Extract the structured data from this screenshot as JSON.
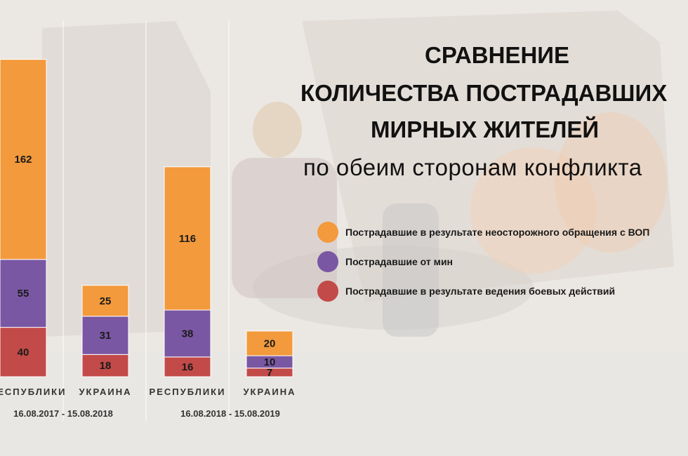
{
  "title_lines": [
    "СРАВНЕНИЕ",
    "КОЛИЧЕСТВА ПОСТРАДАВШИХ",
    "МИРНЫХ ЖИТЕЛЕЙ",
    "по обеим сторонам конфликта"
  ],
  "colors": {
    "accidents": "#f39a3c",
    "mines": "#7a57a3",
    "combat": "#c24a48"
  },
  "chart_data": {
    "type": "bar",
    "stacked": true,
    "categories": [
      "РЕСПУБЛИКИ",
      "УКРАИНА",
      "РЕСПУБЛИКИ",
      "УКРАИНА"
    ],
    "periods": [
      {
        "label": "16.08.2017 - 15.08.2018",
        "categories": [
          0,
          1
        ]
      },
      {
        "label": "16.08.2018 - 15.08.2019",
        "categories": [
          2,
          3
        ]
      }
    ],
    "series": [
      {
        "name": "Пострадавшие в результате ведения боевых действий",
        "key": "combat",
        "values": [
          40,
          18,
          16,
          7
        ]
      },
      {
        "name": "Пострадавшие от мин",
        "key": "mines",
        "values": [
          55,
          31,
          38,
          10
        ]
      },
      {
        "name": "Пострадавшие в результате неосторожного обращения с ВОП",
        "key": "accidents",
        "values": [
          162,
          25,
          116,
          20
        ]
      }
    ],
    "legend_order": [
      "accidents",
      "mines",
      "combat"
    ],
    "legend_position": "right",
    "grid": false
  }
}
